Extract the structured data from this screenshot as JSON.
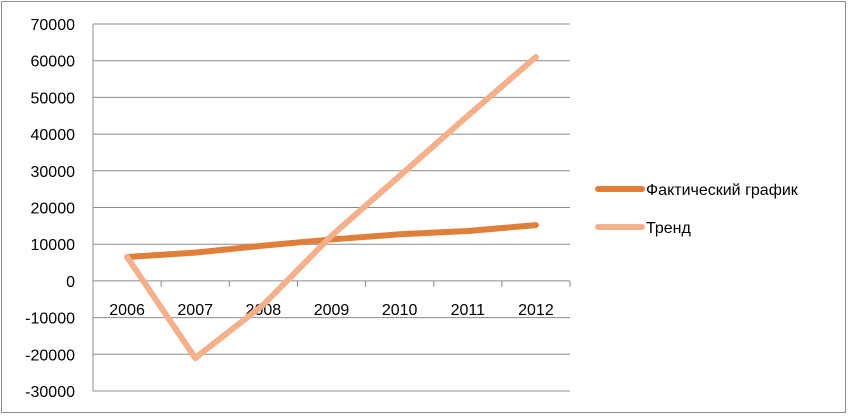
{
  "chart_data": {
    "type": "line",
    "categories": [
      "2006",
      "2007",
      "2008",
      "2009",
      "2010",
      "2011",
      "2012"
    ],
    "series": [
      {
        "name": "Фактический график",
        "color": "#E07F3A",
        "values": [
          6500,
          7700,
          9600,
          11300,
          12700,
          13600,
          15200
        ]
      },
      {
        "name": "Тренд",
        "color": "#F4B08A",
        "values": [
          6500,
          -21000,
          -6500,
          12300,
          28600,
          45000,
          61000
        ]
      }
    ],
    "ylim": [
      -30000,
      70000
    ],
    "yticks": [
      70000,
      60000,
      50000,
      40000,
      30000,
      20000,
      10000,
      0,
      -10000,
      -20000,
      -30000
    ],
    "grid": true,
    "legend": "right",
    "title": "",
    "xlabel": "",
    "ylabel": ""
  }
}
